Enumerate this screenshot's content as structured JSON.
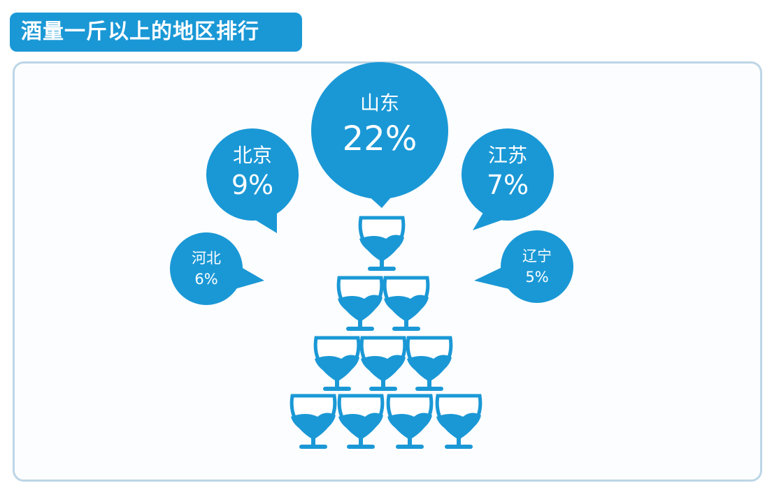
{
  "title": "酒量一斤以上的地区排行",
  "colors": {
    "accent": "#1a98d6",
    "panel_border": "#bcd6e6",
    "background": "#ffffff"
  },
  "chart_data": {
    "type": "bar",
    "title": "酒量一斤以上的地区排行",
    "categories": [
      "山东",
      "北京",
      "江苏",
      "河北",
      "辽宁"
    ],
    "values": [
      22,
      9,
      7,
      6,
      5
    ],
    "labels": [
      "22%",
      "9%",
      "7%",
      "6%",
      "5%"
    ],
    "unit": "%",
    "decoration": "glass-pyramid-icon"
  }
}
